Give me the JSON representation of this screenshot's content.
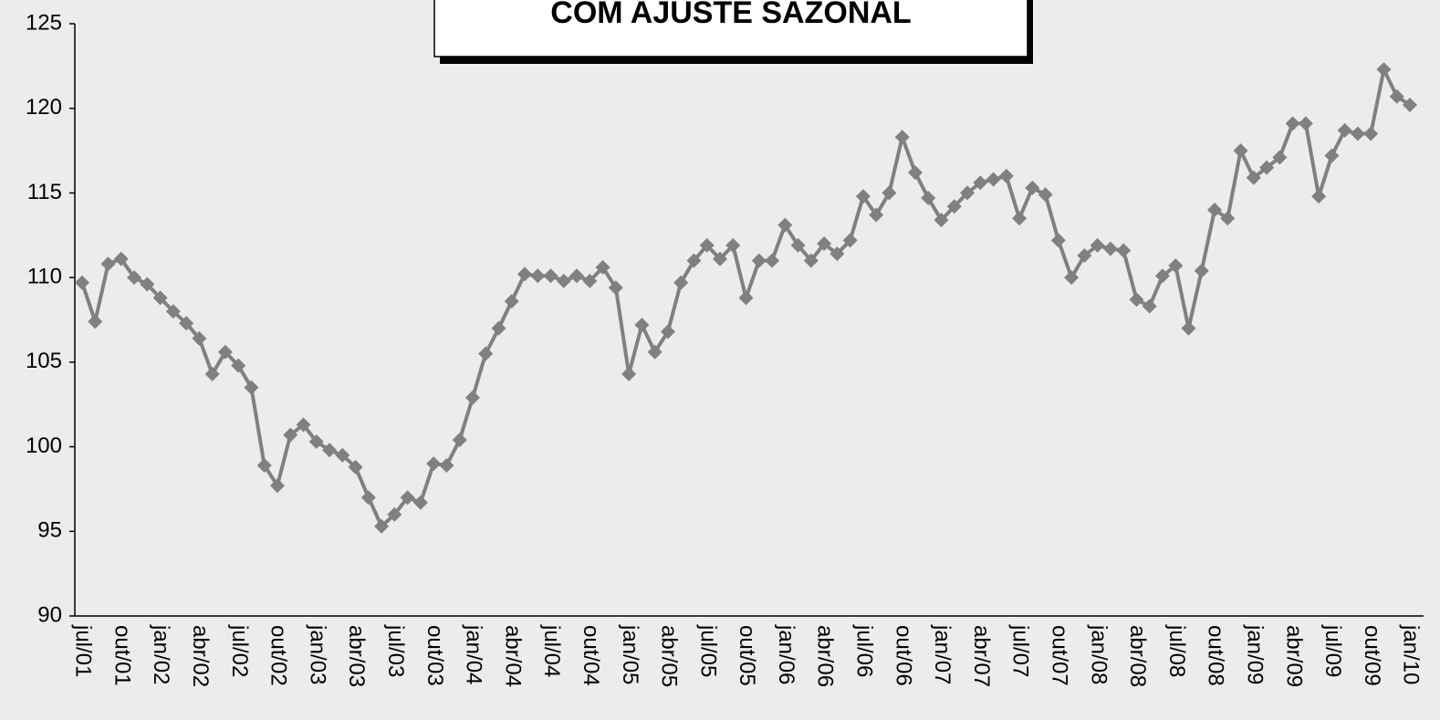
{
  "chart_data": {
    "type": "line",
    "title": "COM AJUSTE SAZONAL",
    "categories": [
      "jul/01",
      null,
      null,
      "out/01",
      null,
      null,
      "jan/02",
      null,
      null,
      "abr/02",
      null,
      null,
      "jul/02",
      null,
      null,
      "out/02",
      null,
      null,
      "jan/03",
      null,
      null,
      "abr/03",
      null,
      null,
      "jul/03",
      null,
      null,
      "out/03",
      null,
      null,
      "jan/04",
      null,
      null,
      "abr/04",
      null,
      null,
      "jul/04",
      null,
      null,
      "out/04",
      null,
      null,
      "jan/05",
      null,
      null,
      "abr/05",
      null,
      null,
      "jul/05",
      null,
      null,
      "out/05",
      null,
      null,
      "jan/06",
      null,
      null,
      "abr/06",
      null,
      null,
      "jul/06",
      null,
      null,
      "out/06",
      null,
      null,
      "jan/07",
      null,
      null,
      "abr/07",
      null,
      null,
      "jul/07",
      null,
      null,
      "out/07",
      null,
      null,
      "jan/08",
      null,
      null,
      "abr/08",
      null,
      null,
      "jul/08",
      null,
      null,
      "out/08",
      null,
      null,
      "jan/09",
      null,
      null,
      "abr/09",
      null,
      null,
      "jul/09",
      null,
      null,
      "out/09",
      null,
      null,
      "jan/10"
    ],
    "values": [
      109.7,
      107.4,
      110.8,
      111.1,
      110.0,
      109.6,
      108.8,
      108.0,
      107.3,
      106.4,
      104.3,
      105.6,
      104.8,
      103.5,
      98.9,
      97.7,
      100.7,
      101.3,
      100.3,
      99.8,
      99.5,
      98.8,
      97.0,
      95.3,
      96.0,
      97.0,
      96.7,
      99.0,
      98.9,
      100.4,
      102.9,
      105.5,
      107.0,
      108.6,
      110.2,
      110.1,
      110.1,
      109.8,
      110.1,
      109.8,
      110.6,
      109.4,
      104.3,
      107.2,
      105.6,
      106.8,
      109.7,
      111.0,
      111.9,
      111.1,
      111.9,
      108.8,
      111.0,
      111.0,
      113.1,
      111.9,
      111.0,
      112.0,
      111.4,
      112.2,
      114.8,
      113.7,
      115.0,
      118.3,
      116.2,
      114.7,
      113.4,
      114.2,
      115.0,
      115.6,
      115.8,
      116.0,
      113.5,
      115.3,
      114.9,
      112.2,
      110.0,
      111.3,
      111.9,
      111.7,
      111.6,
      108.7,
      108.3,
      110.1,
      110.7,
      107.0,
      110.4,
      114.0,
      113.5,
      117.5,
      115.9,
      116.5,
      117.1,
      119.1,
      119.1,
      114.8,
      117.2,
      118.7,
      118.5,
      118.5,
      122.3,
      120.7,
      120.2
    ],
    "color": "#808080",
    "ylim": [
      90,
      125
    ],
    "yticks": [
      90,
      95,
      100,
      105,
      110,
      115,
      120,
      125
    ]
  }
}
